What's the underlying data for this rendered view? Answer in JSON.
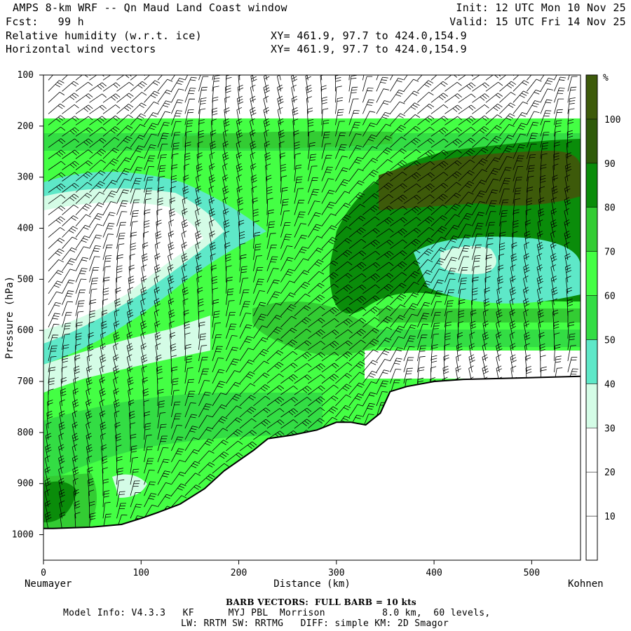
{
  "header": {
    "title": "AMPS 8-km WRF -- Qn Maud Land Coast window",
    "fcst": "Fcst:   99 h",
    "field1": "Relative humidity (w.r.t. ice)",
    "field2": "Horizontal wind vectors",
    "xy1": "XY= 461.9, 97.7 to 424.0,154.9",
    "xy2": "XY= 461.9, 97.7 to 424.0,154.9",
    "init": "Init: 12 UTC Mon 10 Nov 25",
    "valid": "Valid: 15 UTC Fri 14 Nov 25"
  },
  "footer": {
    "barb": "BARB VECTORS:  FULL BARB = 10 kts",
    "model_line1": "Model Info: V4.3.3   KF      MYJ PBL  Morrison          8.0 km,  60 levels,",
    "model_line2": "LW: RRTM SW: RRTMG   DIFF: simple KM: 2D Smagor"
  },
  "chart_data": {
    "type": "heatmap",
    "title": "Relative humidity (w.r.t. ice)",
    "xlabel": "Distance (km)",
    "ylabel": "Pressure (hPa)",
    "xlim": [
      0,
      550
    ],
    "ylim": [
      1050,
      100
    ],
    "x_ticks": [
      0,
      100,
      200,
      300,
      400,
      500
    ],
    "y_ticks": [
      100,
      200,
      300,
      400,
      500,
      600,
      700,
      800,
      900,
      1000
    ],
    "x_end_labels": {
      "left": "Neumayer",
      "right": "Kohnen"
    },
    "colorbar": {
      "unit": "%",
      "levels": [
        10,
        20,
        30,
        40,
        50,
        60,
        70,
        80,
        90,
        100
      ],
      "colors": [
        "#ffffff",
        "#ffffff",
        "#ffffff",
        "#d4fce6",
        "#5ee8c8",
        "#33dd44",
        "#44ff44",
        "#33cc33",
        "#0a8c0a",
        "#2f5a0a",
        "#3d5a0a"
      ]
    },
    "terrain_hPa": [
      [
        0,
        988
      ],
      [
        10,
        988
      ],
      [
        50,
        985
      ],
      [
        80,
        980
      ],
      [
        100,
        968
      ],
      [
        115,
        958
      ],
      [
        140,
        940
      ],
      [
        165,
        910
      ],
      [
        185,
        875
      ],
      [
        200,
        855
      ],
      [
        215,
        835
      ],
      [
        230,
        812
      ],
      [
        255,
        805
      ],
      [
        280,
        795
      ],
      [
        300,
        780
      ],
      [
        315,
        780
      ],
      [
        330,
        785
      ],
      [
        345,
        762
      ],
      [
        355,
        720
      ],
      [
        372,
        710
      ],
      [
        400,
        700
      ],
      [
        430,
        696
      ],
      [
        470,
        694
      ],
      [
        510,
        692
      ],
      [
        550,
        690
      ]
    ]
  }
}
